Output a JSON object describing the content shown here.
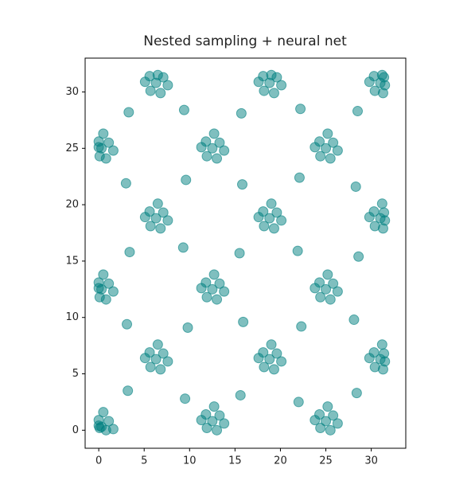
{
  "chart_data": {
    "type": "scatter",
    "title": "Nested sampling + neural net",
    "color": "#008080",
    "x": [
      0.3,
      1.1,
      0.0,
      0.8,
      0.1,
      1.6,
      0.0,
      0.5,
      0.3,
      1.1,
      0.0,
      0.8,
      0.1,
      1.6,
      0.0,
      0.5,
      0.3,
      1.1,
      0.0,
      0.8,
      0.1,
      1.6,
      0.0,
      0.5,
      6.3,
      7.1,
      5.6,
      6.8,
      5.7,
      7.6,
      5.1,
      6.5,
      6.3,
      7.1,
      5.6,
      6.8,
      5.7,
      7.6,
      5.1,
      6.5,
      6.3,
      7.1,
      5.6,
      6.8,
      5.7,
      7.6,
      5.1,
      6.5,
      12.5,
      13.3,
      11.8,
      13.0,
      11.9,
      13.8,
      11.3,
      12.7,
      12.5,
      13.3,
      11.8,
      13.0,
      11.9,
      13.8,
      11.3,
      12.7,
      12.5,
      13.3,
      11.8,
      13.0,
      11.9,
      13.8,
      11.3,
      12.7,
      18.8,
      19.6,
      18.1,
      19.3,
      18.2,
      20.1,
      17.6,
      19.0,
      18.8,
      19.6,
      18.1,
      19.3,
      18.2,
      20.1,
      17.6,
      19.0,
      18.8,
      19.6,
      18.1,
      19.3,
      18.2,
      20.1,
      17.6,
      19.0,
      25,
      25.8,
      24.3,
      25.5,
      24.4,
      26.3,
      23.8,
      25.2,
      25,
      25.8,
      24.3,
      25.5,
      24.4,
      26.3,
      23.8,
      25.2,
      25,
      25.8,
      24.3,
      25.5,
      24.4,
      26.3,
      23.8,
      25.2,
      31,
      31.4,
      30.3,
      31.3,
      30.4,
      31.5,
      29.8,
      31.2,
      31,
      31.4,
      30.3,
      31.3,
      30.4,
      31.5,
      29.8,
      31.2,
      31,
      31.4,
      30.3,
      31.3,
      30.4,
      31.5,
      29.8,
      31.2,
      3.2,
      9.5,
      15.6,
      22,
      28.4,
      3.1,
      9.8,
      15.9,
      22.3,
      28.1,
      3.4,
      9.3,
      15.5,
      21.9,
      28.6,
      3.0,
      9.6,
      15.8,
      22.1,
      28.3,
      3.3,
      9.4,
      15.7,
      22.2,
      28.5
    ],
    "values": [
      0.3,
      0.8,
      0.9,
      0.0,
      0.2,
      0.1,
      0.4,
      1.6,
      12.5,
      13.0,
      13.1,
      11.6,
      11.8,
      12.3,
      12.6,
      13.8,
      25,
      25.5,
      25.6,
      24.1,
      24.3,
      24.8,
      25.1,
      26.3,
      6.3,
      6.8,
      6.9,
      5.4,
      5.6,
      6.1,
      6.4,
      7.6,
      18.8,
      19.3,
      19.4,
      17.9,
      18.1,
      18.6,
      18.9,
      20.1,
      30.8,
      31.3,
      31.4,
      29.9,
      30.1,
      30.6,
      30.9,
      31.5,
      0.8,
      1.3,
      1.4,
      0.0,
      0.2,
      0.6,
      0.9,
      2.1,
      12.5,
      13.0,
      13.1,
      11.6,
      11.8,
      12.3,
      12.6,
      13.8,
      25,
      25.5,
      25.6,
      24.1,
      24.3,
      24.8,
      25.1,
      26.3,
      6.3,
      6.8,
      6.9,
      5.4,
      5.6,
      6.1,
      6.4,
      7.6,
      18.8,
      19.3,
      19.4,
      17.9,
      18.1,
      18.6,
      18.9,
      20.1,
      30.8,
      31.3,
      31.4,
      29.9,
      30.1,
      30.6,
      30.9,
      31.5,
      0.8,
      1.3,
      1.4,
      0.0,
      0.2,
      0.6,
      0.9,
      2.1,
      12.5,
      13.0,
      13.1,
      11.6,
      11.8,
      12.3,
      12.6,
      13.8,
      25,
      25.5,
      25.6,
      24.1,
      24.3,
      24.8,
      25.1,
      26.3,
      6.3,
      6.8,
      6.9,
      5.4,
      5.6,
      6.1,
      6.4,
      7.6,
      18.8,
      19.3,
      19.4,
      17.9,
      18.1,
      18.6,
      18.9,
      20.1,
      30.8,
      31.3,
      31.4,
      29.9,
      30.1,
      30.6,
      30.9,
      31.5,
      3.5,
      2.8,
      3.1,
      2.5,
      3.3,
      9.4,
      9.1,
      9.6,
      9.2,
      9.8,
      15.8,
      16.2,
      15.7,
      15.9,
      15.4,
      21.9,
      22.2,
      21.8,
      22.4,
      21.6,
      28.2,
      28.4,
      28.1,
      28.5,
      28.3
    ],
    "xlim": [
      -1.5,
      33.8
    ],
    "ylim": [
      -1.6,
      33
    ],
    "xticks": [
      0,
      5,
      10,
      15,
      20,
      25,
      30
    ],
    "yticks": [
      0,
      5,
      10,
      15,
      20,
      25,
      30
    ]
  }
}
